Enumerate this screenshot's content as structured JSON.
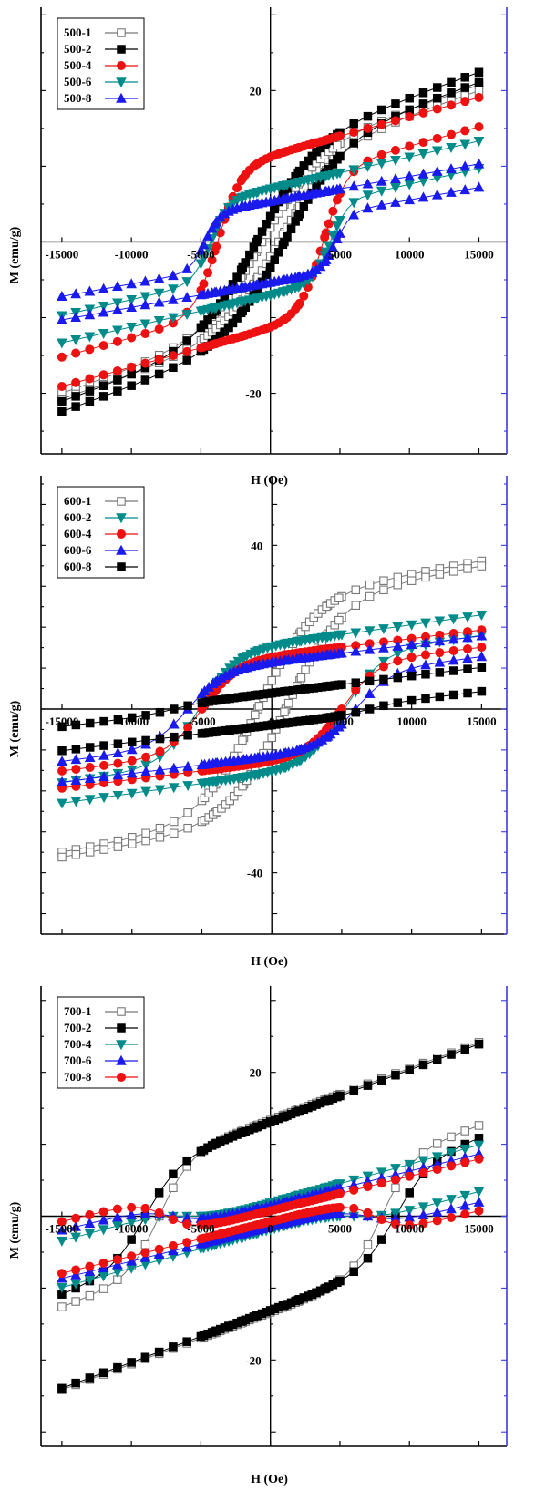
{
  "charts": [
    {
      "type": "line",
      "xlabel": "H (Oe)",
      "ylabel": "M (emu/g)",
      "xlim": [
        -16500,
        17000
      ],
      "ylim": [
        -28,
        31
      ],
      "x_ticks": [
        -15000,
        -10000,
        -5000,
        5000,
        10000,
        15000
      ],
      "x_tick_labels": [
        "-15000",
        "-10000",
        "-5000",
        "5000",
        "10000",
        "15000"
      ],
      "y_ticks": [
        20,
        -20
      ],
      "y_tick_labels": [
        "20",
        "-20"
      ],
      "legend_position": "top-left",
      "series": [
        {
          "name": "500-1",
          "color": "#888888",
          "marker": "square-open",
          "ms": 22,
          "hc": 600,
          "mr": 11.5,
          "hk": 4200,
          "k": 10.5
        },
        {
          "name": "500-2",
          "color": "#000000",
          "marker": "square",
          "ms": 23.5,
          "hc": 1000,
          "mr": 12.5,
          "hk": 4300,
          "k": 11
        },
        {
          "name": "500-4",
          "color": "#ee1111",
          "marker": "circle",
          "ms": 18.5,
          "hc": 3800,
          "mr": 10,
          "hk": 1700,
          "k": 8.5
        },
        {
          "name": "500-6",
          "color": "#008b8b",
          "marker": "triangle-down",
          "ms": 12.5,
          "hc": 4300,
          "mr": 7.5,
          "hk": 1300,
          "k": 7
        },
        {
          "name": "500-8",
          "color": "#1a1aee",
          "marker": "triangle",
          "ms": 9.5,
          "hc": 4700,
          "mr": 5,
          "hk": 1100,
          "k": 5.5
        }
      ]
    },
    {
      "type": "line",
      "xlabel": "H (Oe)",
      "ylabel": "M (emu/g)",
      "xlim": [
        -16500,
        16800
      ],
      "ylim": [
        -55,
        57
      ],
      "x_ticks": [
        -15000,
        -10000,
        -5000,
        0,
        5000,
        10000,
        15000
      ],
      "x_tick_labels": [
        "-15000",
        "-10000",
        "-5000",
        "0",
        "5000",
        "10000",
        "15000"
      ],
      "y_ticks": [
        40,
        -40
      ],
      "y_tick_labels": [
        "40",
        "-40"
      ],
      "legend_position": "top-left",
      "series": [
        {
          "name": "600-1",
          "color": "#888888",
          "marker": "square-open",
          "ms": 38,
          "hc": 1000,
          "mr": 18,
          "hk": 4100,
          "k": 10
        },
        {
          "name": "600-2",
          "color": "#008b8b",
          "marker": "triangle-down",
          "ms": 22,
          "hc": 5200,
          "mr": 16,
          "hk": 2700,
          "k": 8
        },
        {
          "name": "600-4",
          "color": "#ee1111",
          "marker": "circle",
          "ms": 18.5,
          "hc": 5000,
          "mr": 14,
          "hk": 2500,
          "k": 7
        },
        {
          "name": "600-6",
          "color": "#1a1aee",
          "marker": "triangle",
          "ms": 16.5,
          "hc": 6000,
          "mr": 15,
          "hk": 2600,
          "k": 7
        },
        {
          "name": "600-8",
          "color": "#000000",
          "marker": "square",
          "ms": 8,
          "hc": 7000,
          "mr": 10,
          "hk": 2200,
          "k": 7
        }
      ]
    },
    {
      "type": "line",
      "xlabel": "H (Oe)",
      "ylabel": "M (emu/g)",
      "xlim": [
        -16500,
        17000
      ],
      "ylim": [
        -32,
        32
      ],
      "x_ticks": [
        -15000,
        -10000,
        -5000,
        0,
        5000,
        10000,
        15000
      ],
      "x_tick_labels": [
        "-15000",
        "-10000",
        "-5000",
        "0",
        "5000",
        "10000",
        "15000"
      ],
      "y_ticks": [
        20,
        -20
      ],
      "y_tick_labels": [
        "20",
        "-20"
      ],
      "legend_position": "top-left",
      "series": [
        {
          "name": "700-1",
          "color": "#888888",
          "marker": "square-open",
          "ms": 20,
          "hc": 8000,
          "mr": 20,
          "hk": 2200,
          "k": 12
        },
        {
          "name": "700-2",
          "color": "#000000",
          "marker": "square",
          "ms": 19,
          "hc": 9000,
          "mr": 18,
          "hk": 2500,
          "k": 12
        },
        {
          "name": "700-4",
          "color": "#008b8b",
          "marker": "triangle-down",
          "ms": 7.5,
          "hc": 6000,
          "mr": 9,
          "hk": 2500,
          "k": 9
        },
        {
          "name": "700-6",
          "color": "#1a1aee",
          "marker": "triangle",
          "ms": 6,
          "hc": 7000,
          "mr": 7,
          "hk": 2400,
          "k": 8
        },
        {
          "name": "700-8",
          "color": "#ee1111",
          "marker": "circle",
          "ms": 5,
          "hc": 7500,
          "mr": 6,
          "hk": 2000,
          "k": 8
        }
      ]
    }
  ]
}
